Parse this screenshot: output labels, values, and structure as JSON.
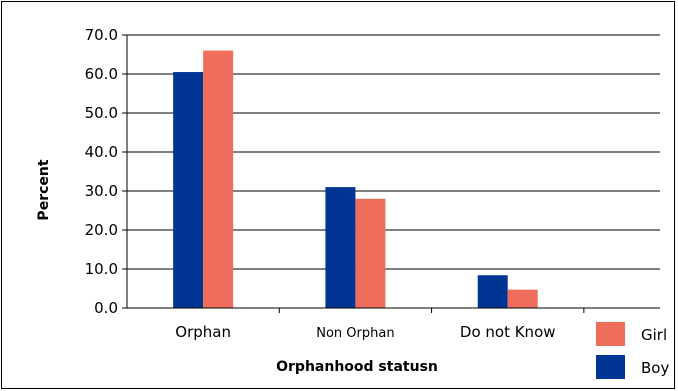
{
  "chart_data": {
    "type": "bar",
    "categories": [
      "Orphan",
      "Non Orphan",
      "Do not Know"
    ],
    "series": [
      {
        "name": "Boy",
        "color": "#003594",
        "values": [
          60.5,
          31.0,
          8.4
        ]
      },
      {
        "name": "Girl",
        "color": "#EF6E5B",
        "values": [
          66.0,
          28.0,
          4.7
        ]
      }
    ],
    "xlabel": "Orphanhood statusn",
    "ylabel": "Percent",
    "ylim": [
      0,
      70
    ],
    "yticks": [
      "0.0",
      "10.0",
      "20.0",
      "30.0",
      "40.0",
      "50.0",
      "60.0",
      "70.0"
    ],
    "grid": true,
    "legend_position": "bottom-right",
    "legend_order": [
      "Girl",
      "Boy"
    ]
  }
}
